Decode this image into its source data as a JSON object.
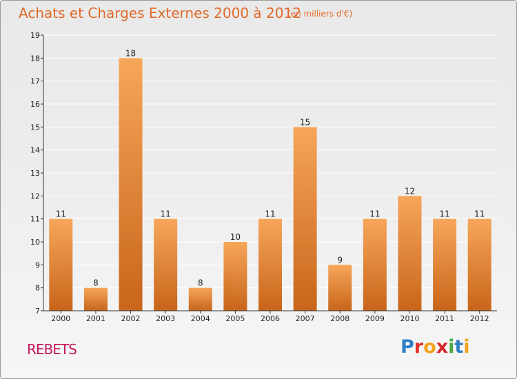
{
  "header": {
    "title": "Achats et Charges Externes 2000 à 2012",
    "subtitle": "(en milliers d'€)"
  },
  "footer": {
    "commune": "REBETS",
    "logo": {
      "letters": [
        "P",
        "r",
        "o",
        "x",
        "i",
        "t",
        "i"
      ],
      "colors": [
        "#2e7fc4",
        "#e3322a",
        "#f4a21a",
        "#d9262e",
        "#4aa844",
        "#2e7fc4",
        "#f4a21a"
      ]
    }
  },
  "colors": {
    "bar_top": "#f6a65a",
    "bar_bottom": "#c8651a",
    "grid": "#ffffff",
    "axis": "#333333"
  },
  "chart_data": {
    "type": "bar",
    "categories": [
      "2000",
      "2001",
      "2002",
      "2003",
      "2004",
      "2005",
      "2006",
      "2007",
      "2008",
      "2009",
      "2010",
      "2011",
      "2012"
    ],
    "values": [
      11,
      8,
      18,
      11,
      8,
      10,
      11,
      15,
      9,
      11,
      12,
      11,
      11
    ],
    "title": "Achats et Charges Externes 2000 à 2012",
    "subtitle": "(en milliers d'€)",
    "xlabel": "",
    "ylabel": "",
    "ylim": [
      7,
      19
    ],
    "yticks": [
      7,
      8,
      9,
      10,
      11,
      12,
      13,
      14,
      15,
      16,
      17,
      18,
      19
    ],
    "grid": true,
    "data_labels": true
  }
}
